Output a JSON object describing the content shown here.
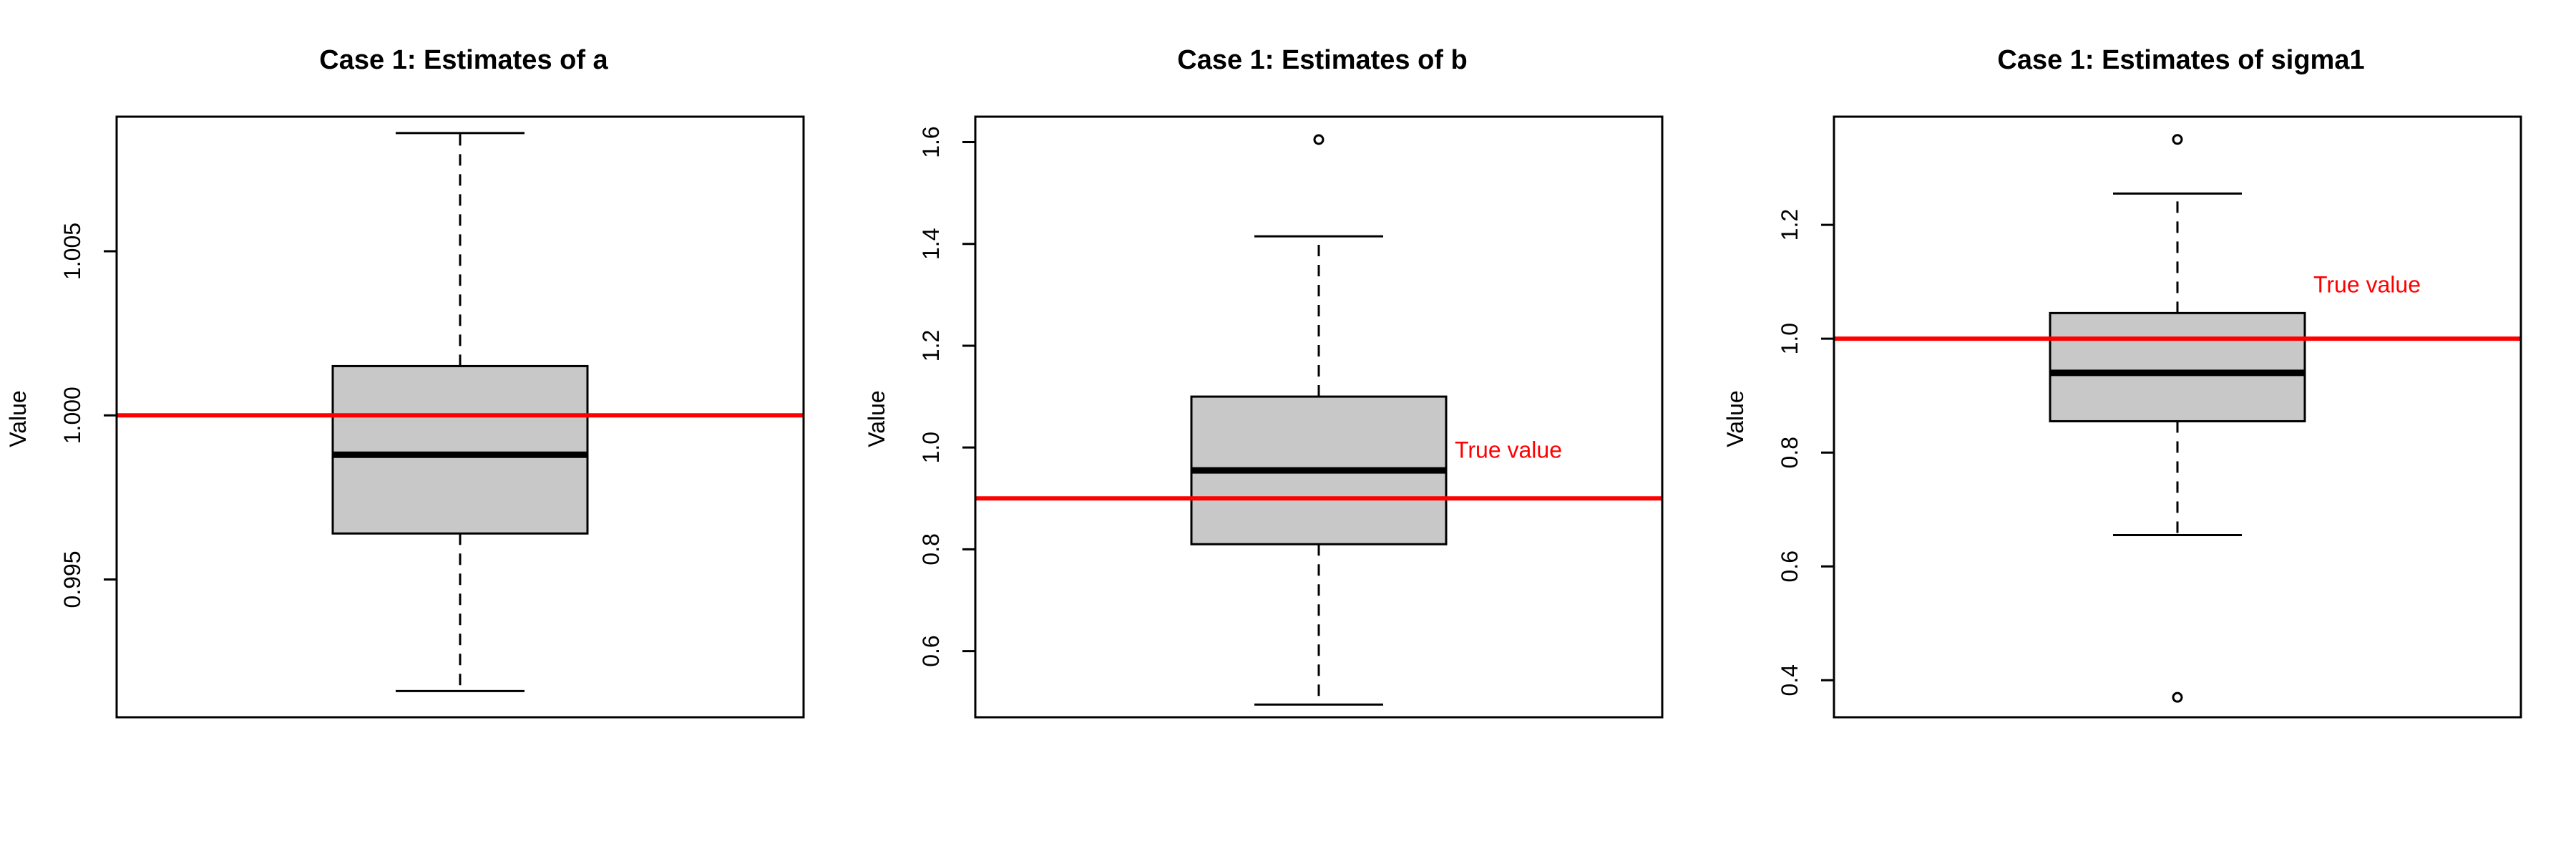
{
  "chart_data": [
    {
      "type": "boxplot",
      "title": "Case 1: Estimates of a",
      "ylabel": "Value",
      "ylim": [
        0.9908,
        1.0091
      ],
      "yticks": [
        0.995,
        1.0,
        1.005
      ],
      "ytick_labels": [
        "0.995",
        "1.000",
        "1.005"
      ],
      "box": {
        "whisker_low": 0.9916,
        "q1": 0.9964,
        "median": 0.9988,
        "q3": 1.0015,
        "whisker_high": 1.0086
      },
      "outliers": [],
      "true_value": 1.0,
      "true_value_label": "",
      "colors": {
        "box_fill": "#c8c8c8",
        "true_line": "#ff0000"
      }
    },
    {
      "type": "boxplot",
      "title": "Case 1: Estimates of b",
      "ylabel": "Value",
      "ylim": [
        0.47,
        1.65
      ],
      "yticks": [
        0.6,
        0.8,
        1.0,
        1.2,
        1.4,
        1.6
      ],
      "ytick_labels": [
        "0.6",
        "0.8",
        "1.0",
        "1.2",
        "1.4",
        "1.6"
      ],
      "box": {
        "whisker_low": 0.495,
        "q1": 0.81,
        "median": 0.955,
        "q3": 1.1,
        "whisker_high": 1.415
      },
      "outliers": [
        1.605
      ],
      "true_value": 0.9,
      "true_value_label": "True value",
      "true_value_label_y": 0.995,
      "colors": {
        "box_fill": "#c8c8c8",
        "true_line": "#ff0000"
      }
    },
    {
      "type": "boxplot",
      "title": "Case 1: Estimates of sigma1",
      "ylabel": "Value",
      "ylim": [
        0.335,
        1.39
      ],
      "yticks": [
        0.4,
        0.6,
        0.8,
        1.0,
        1.2
      ],
      "ytick_labels": [
        "0.4",
        "0.6",
        "0.8",
        "1.0",
        "1.2"
      ],
      "box": {
        "whisker_low": 0.655,
        "q1": 0.855,
        "median": 0.94,
        "q3": 1.045,
        "whisker_high": 1.255
      },
      "outliers": [
        1.35,
        0.37
      ],
      "true_value": 1.0,
      "true_value_label": "True value",
      "true_value_label_y": 1.095,
      "colors": {
        "box_fill": "#c8c8c8",
        "true_line": "#ff0000"
      }
    }
  ]
}
